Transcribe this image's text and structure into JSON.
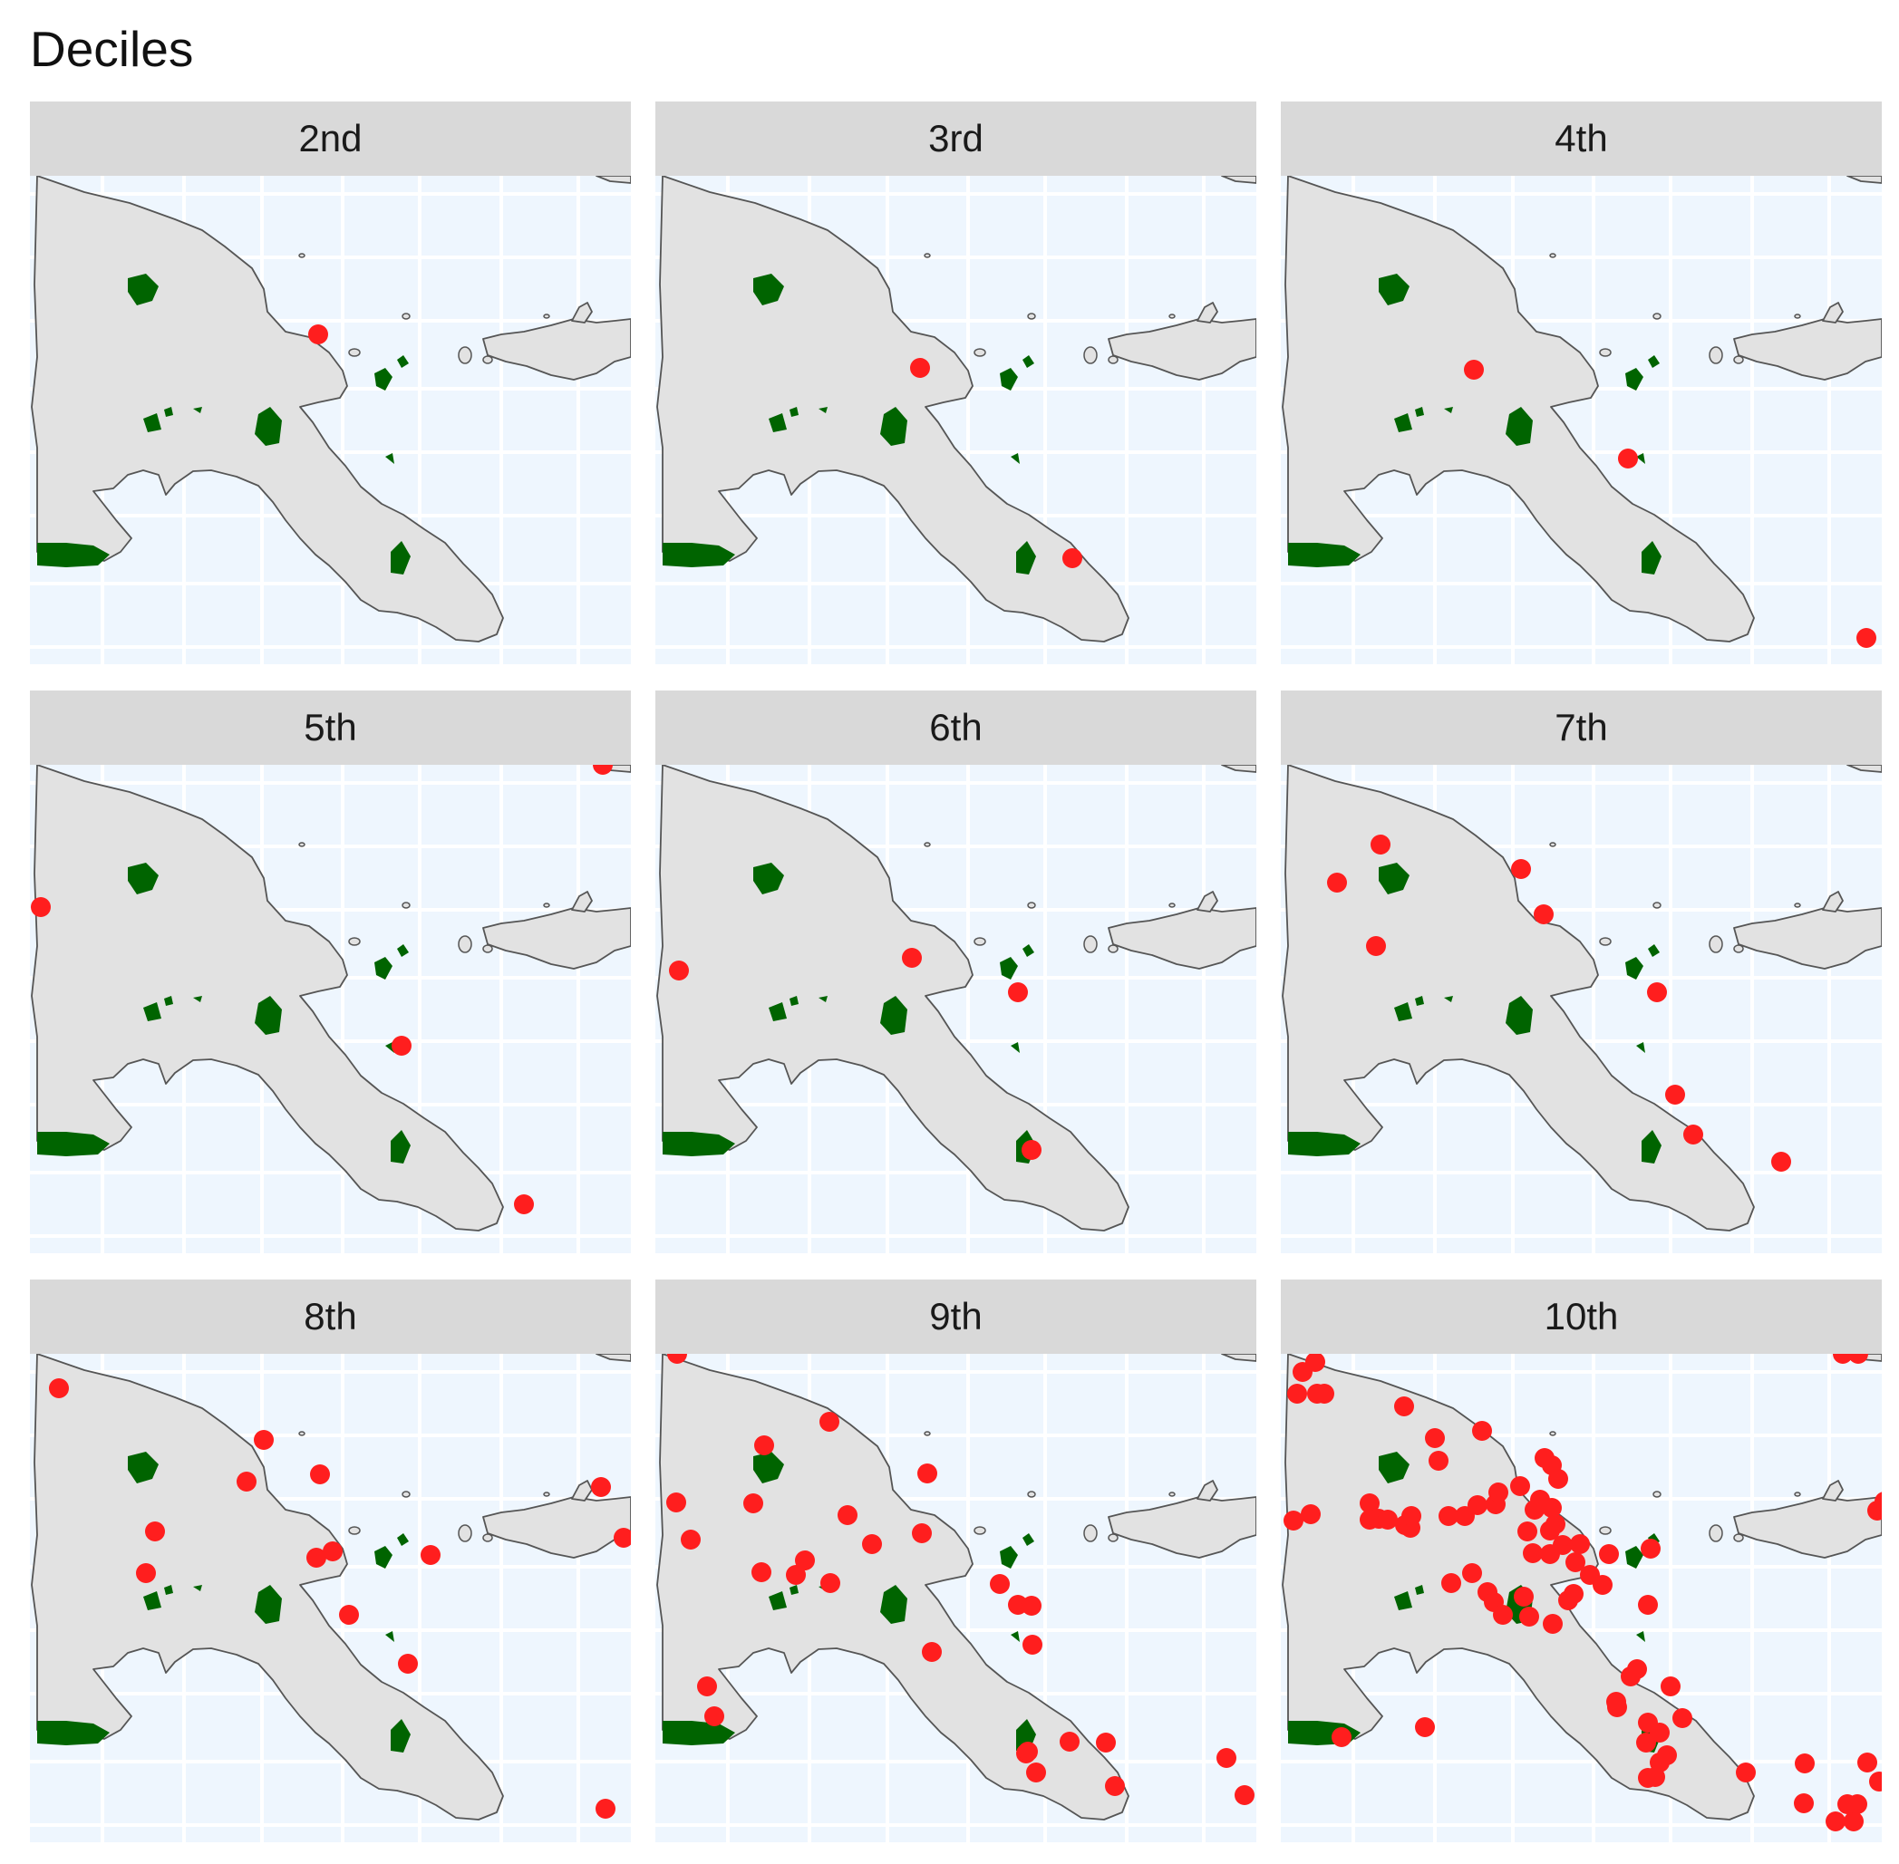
{
  "title": "Deciles",
  "colors": {
    "ocean": "#eef6fe",
    "grid": "#ffffff",
    "land": "#e2e2e2",
    "coast": "#555555",
    "protected": "#006400",
    "point": "#ff1e1e",
    "strip": "#d9d9d9"
  },
  "facets": [
    {
      "label": "2nd"
    },
    {
      "label": "3rd"
    },
    {
      "label": "4th"
    },
    {
      "label": "5th"
    },
    {
      "label": "6th"
    },
    {
      "label": "7th"
    },
    {
      "label": "8th"
    },
    {
      "label": "9th"
    },
    {
      "label": "10th"
    }
  ]
}
